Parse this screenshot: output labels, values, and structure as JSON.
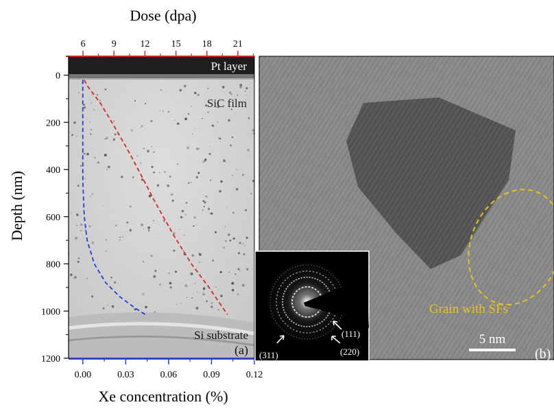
{
  "figure": {
    "panel_a": {
      "top_axis": {
        "title": "Dose (dpa)",
        "ticks": [
          "6",
          "9",
          "12",
          "15",
          "18",
          "21"
        ],
        "color": "#d62728"
      },
      "left_axis": {
        "title": "Depth (nm)",
        "ticks": [
          "0",
          "200",
          "400",
          "600",
          "800",
          "1000",
          "1200"
        ]
      },
      "bottom_axis": {
        "title": "Xe concentration (%)",
        "ticks": [
          "0.00",
          "0.03",
          "0.06",
          "0.09",
          "0.12"
        ],
        "color": "#1f3fd6"
      },
      "labels": {
        "pt_layer": "Pt layer",
        "sic_film": "SiC film",
        "si_substrate": "Si substrate",
        "panel": "(a)"
      }
    },
    "panel_b": {
      "annotation": "Grain with SFs",
      "scale_bar": "5 nm",
      "panel": "(b)",
      "inset_rings": [
        "(111)",
        "(220)",
        "(311)"
      ],
      "annotation_color": "#e8c21a"
    }
  },
  "chart_data": {
    "type": "line",
    "xlabel": "Xe concentration (%)",
    "ylabel": "Depth (nm)",
    "xlim": [
      -0.01,
      0.12
    ],
    "ylim": [
      1200,
      -80
    ],
    "x2label": "Dose (dpa)",
    "x2lim": [
      4.6,
      22.6
    ],
    "series": [
      {
        "axis": "bottom",
        "color": "#1f3fd6",
        "x": [
          0.0,
          0.0,
          0.0,
          0.0,
          0.001,
          0.003,
          0.008,
          0.016,
          0.026,
          0.036,
          0.045
        ],
        "y": [
          20,
          150,
          300,
          450,
          600,
          700,
          800,
          880,
          940,
          985,
          1020
        ]
      },
      {
        "axis": "top",
        "color": "#d62728",
        "x": [
          6.1,
          6.5,
          7.7,
          9.2,
          10.5,
          11.7,
          13.0,
          14.8,
          16.5,
          18.2,
          19.6,
          20.0
        ],
        "y": [
          20,
          50,
          120,
          230,
          330,
          430,
          540,
          680,
          800,
          900,
          990,
          1015
        ]
      }
    ]
  }
}
